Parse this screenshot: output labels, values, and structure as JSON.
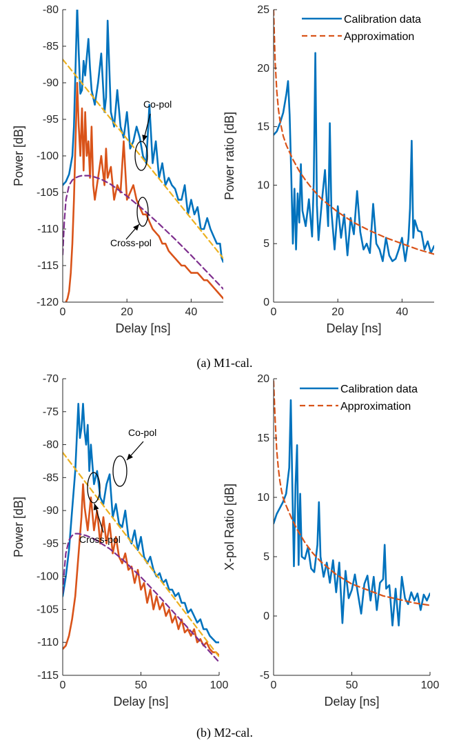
{
  "colors": {
    "blue": "#0072BD",
    "orange": "#D95319",
    "yellow": "#EDB120",
    "purple": "#7E2F8E",
    "axis": "#262626"
  },
  "captions": [
    "(a) M1-cal.",
    "(b) M2-cal."
  ],
  "chart_data": [
    {
      "id": "m1-power",
      "type": "line",
      "xlabel": "Delay [ns]",
      "ylabel": "Power [dB]",
      "xlim": [
        0,
        50
      ],
      "ylim": [
        -120,
        -80
      ],
      "xticks": [
        0,
        20,
        40
      ],
      "yticks": [
        -120,
        -115,
        -110,
        -105,
        -100,
        -95,
        -90,
        -85,
        -80
      ],
      "grid": false,
      "annotations": [
        "Co-pol",
        "Cross-pol"
      ],
      "series": [
        {
          "style": "co-pol",
          "color": "#0072BD",
          "dash": "",
          "width": 2.6,
          "x": [
            0,
            1,
            2,
            3,
            3.5,
            4,
            4.5,
            5,
            5.5,
            6,
            6.5,
            7,
            7.5,
            8,
            8.5,
            9,
            10,
            11,
            12,
            12.5,
            13,
            13.5,
            14,
            15,
            16,
            17,
            18,
            19,
            20,
            21,
            22,
            23,
            24,
            25,
            26,
            27,
            28,
            29,
            30,
            31,
            32,
            33,
            34,
            35,
            36,
            37,
            38,
            39,
            40,
            41,
            42,
            43,
            44,
            45,
            46,
            47,
            48,
            49,
            49.5,
            50
          ],
          "y": [
            -104,
            -103.5,
            -102.5,
            -100,
            -96,
            -88,
            -79.5,
            -86,
            -91.5,
            -91,
            -87,
            -89,
            -86.5,
            -84,
            -88,
            -91,
            -93,
            -90,
            -86,
            -90,
            -94,
            -92,
            -81.5,
            -94,
            -96,
            -91,
            -96,
            -97.5,
            -94,
            -99,
            -98,
            -96,
            -97.5,
            -100,
            -101,
            -93,
            -101,
            -98,
            -103,
            -101,
            -104,
            -103,
            -104,
            -104.5,
            -106,
            -106,
            -104,
            -108,
            -106,
            -108,
            -107,
            -110,
            -110,
            -108.5,
            -110,
            -111,
            -112,
            -112,
            -114,
            -114.5
          ]
        },
        {
          "style": "cross-pol",
          "color": "#D95319",
          "dash": "",
          "width": 2.6,
          "x": [
            1,
            1.5,
            2,
            2.5,
            3,
            3.5,
            4,
            4.5,
            5,
            5.5,
            6,
            6.5,
            7,
            7.5,
            8,
            8.5,
            9,
            9.5,
            10,
            11,
            12,
            13,
            13.5,
            14,
            15,
            16,
            17,
            18,
            19,
            20,
            21,
            22,
            23,
            24,
            25,
            26,
            27,
            28,
            29,
            30,
            31,
            32,
            33,
            34,
            35,
            36,
            37,
            38,
            39,
            40,
            41,
            42,
            43,
            44,
            45,
            46,
            47,
            48,
            49,
            50
          ],
          "y": [
            -120,
            -119.5,
            -118.5,
            -116,
            -112,
            -106,
            -98,
            -90,
            -96,
            -100,
            -93.5,
            -102,
            -94,
            -100,
            -98,
            -103,
            -96,
            -104,
            -106,
            -103,
            -100,
            -104,
            -99,
            -103,
            -101.5,
            -106,
            -104,
            -105,
            -98,
            -106,
            -105,
            -104,
            -106,
            -107,
            -108,
            -108,
            -109,
            -110,
            -110.5,
            -111,
            -112,
            -112,
            -113,
            -113.5,
            -114,
            -114.5,
            -115,
            -115,
            -115.5,
            -116,
            -116,
            -116,
            -116.5,
            -117,
            -117,
            -117.5,
            -118,
            -118.5,
            -119,
            -119.5
          ]
        },
        {
          "style": "co-pol-fit",
          "color": "#EDB120",
          "dash": "8,5",
          "width": 2.2,
          "x": [
            0,
            50
          ],
          "y": [
            -86.8,
            -114
          ]
        },
        {
          "style": "cross-pol-fit",
          "color": "#7E2F8E",
          "dash": "8,5",
          "width": 2.2,
          "x": [
            0,
            0.5,
            1,
            2,
            3,
            4,
            5,
            6,
            8,
            10,
            12,
            15,
            20,
            25,
            30,
            35,
            40,
            45,
            50
          ],
          "y": [
            -113.5,
            -109,
            -106,
            -104,
            -103.3,
            -103,
            -102.8,
            -102.7,
            -102.7,
            -102.9,
            -103.2,
            -103.9,
            -105.5,
            -107.3,
            -109.3,
            -111.4,
            -113.6,
            -115.9,
            -118.2
          ]
        }
      ]
    },
    {
      "id": "m1-ratio",
      "type": "line",
      "xlabel": "Delay [ns]",
      "ylabel": "Power ratio [dB]",
      "xlim": [
        0,
        50
      ],
      "ylim": [
        0,
        25
      ],
      "xticks": [
        0,
        20,
        40
      ],
      "yticks": [
        0,
        5,
        10,
        15,
        20,
        25
      ],
      "grid": false,
      "legend": {
        "position": "top-right"
      },
      "series": [
        {
          "name": "Calibration data",
          "color": "#0072BD",
          "dash": "",
          "width": 2.6,
          "x": [
            0,
            1,
            2,
            3,
            4,
            4.5,
            5,
            5.5,
            6,
            6.5,
            7,
            7.5,
            8,
            8.5,
            9,
            10,
            11,
            12,
            12.5,
            13,
            13.5,
            14,
            15,
            16,
            17,
            17.5,
            18,
            19,
            20,
            21,
            22,
            23,
            24,
            25,
            26,
            27,
            28,
            29,
            30,
            31,
            32,
            33,
            34,
            35,
            36,
            37,
            38,
            39,
            40,
            41,
            42,
            42.5,
            43,
            43.5,
            44,
            45,
            46,
            47,
            48,
            49,
            50
          ],
          "y": [
            14.3,
            14.6,
            15.3,
            16.2,
            17.8,
            18.9,
            16,
            11,
            5,
            9.7,
            4.5,
            9.3,
            6.8,
            11.8,
            7.8,
            6.5,
            8.8,
            5.6,
            10.3,
            21.3,
            8.3,
            5.3,
            8.5,
            11.3,
            6.5,
            15.3,
            7.8,
            4.5,
            8.2,
            5.5,
            7.5,
            4,
            7.2,
            5.8,
            9.5,
            6,
            4.5,
            5,
            4.2,
            8.4,
            5,
            4.5,
            3.5,
            5.5,
            4,
            3.5,
            3.7,
            4.5,
            5.5,
            3.5,
            5.4,
            8,
            13.8,
            5.5,
            7,
            6.1,
            6,
            4.5,
            5.2,
            4.2,
            4.8
          ]
        },
        {
          "name": "Approximation",
          "color": "#D95319",
          "dash": "8,5",
          "width": 2.2,
          "x": [
            0,
            0.5,
            1,
            1.5,
            2,
            3,
            4,
            5,
            6,
            8,
            10,
            12,
            15,
            20,
            25,
            30,
            35,
            40,
            45,
            50
          ],
          "y": [
            25,
            20.5,
            18,
            16.5,
            15.5,
            14.2,
            13.4,
            12.8,
            12.2,
            11.2,
            10.4,
            9.7,
            8.8,
            7.7,
            6.8,
            6.1,
            5.5,
            5,
            4.5,
            4.1
          ]
        }
      ]
    },
    {
      "id": "m2-power",
      "type": "line",
      "xlabel": "Delay [ns]",
      "ylabel": "Power [dB]",
      "xlim": [
        0,
        100
      ],
      "ylim": [
        -115,
        -70
      ],
      "xticks": [
        0,
        50,
        100
      ],
      "yticks": [
        -115,
        -110,
        -105,
        -100,
        -95,
        -90,
        -85,
        -80,
        -75,
        -70
      ],
      "grid": false,
      "annotations": [
        "Co-pol",
        "Cross-pol"
      ],
      "series": [
        {
          "style": "co-pol",
          "color": "#0072BD",
          "dash": "",
          "width": 2.6,
          "x": [
            0,
            2,
            4,
            6,
            8,
            10,
            11,
            12,
            13,
            14,
            15,
            16,
            17,
            18,
            19,
            20,
            22,
            24,
            26,
            28,
            30,
            32,
            34,
            36,
            38,
            40,
            42,
            44,
            46,
            48,
            50,
            52,
            54,
            56,
            58,
            60,
            62,
            64,
            66,
            68,
            70,
            72,
            74,
            76,
            78,
            80,
            82,
            84,
            86,
            88,
            90,
            92,
            94,
            96,
            98,
            100
          ],
          "y": [
            -103,
            -100,
            -96,
            -90,
            -84,
            -73.8,
            -79,
            -77.5,
            -73.8,
            -78,
            -80,
            -77,
            -84,
            -80,
            -83,
            -86,
            -84,
            -88,
            -89,
            -86,
            -84.5,
            -91,
            -89,
            -92,
            -92.5,
            -90,
            -94,
            -95,
            -93,
            -96,
            -94,
            -97,
            -98,
            -97,
            -99,
            -100,
            -99.5,
            -101,
            -100.5,
            -102,
            -102,
            -103,
            -102.5,
            -104,
            -104,
            -105.5,
            -105,
            -106,
            -107,
            -106.5,
            -108,
            -108,
            -109,
            -109.5,
            -110,
            -110
          ]
        },
        {
          "style": "cross-pol",
          "color": "#D95319",
          "dash": "",
          "width": 2.6,
          "x": [
            0,
            2,
            4,
            6,
            8,
            10,
            12,
            13,
            14,
            16,
            18,
            20,
            22,
            24,
            26,
            28,
            30,
            32,
            34,
            36,
            38,
            40,
            42,
            44,
            46,
            48,
            50,
            52,
            54,
            56,
            58,
            60,
            62,
            64,
            66,
            68,
            70,
            72,
            74,
            76,
            78,
            80,
            82,
            84,
            86,
            88,
            90,
            92,
            94,
            96,
            98,
            100
          ],
          "y": [
            -111,
            -110.5,
            -109,
            -106.5,
            -103,
            -97,
            -91,
            -86,
            -89.5,
            -93,
            -88,
            -93,
            -90,
            -95,
            -91,
            -95,
            -92,
            -96.5,
            -94,
            -97,
            -98,
            -96.5,
            -99,
            -98.5,
            -101,
            -99,
            -102,
            -101,
            -104,
            -102,
            -105,
            -103,
            -105,
            -104,
            -106,
            -105,
            -107,
            -106,
            -108,
            -106.5,
            -108.5,
            -108,
            -109,
            -108,
            -110,
            -109.5,
            -110.5,
            -110,
            -111,
            -111.5,
            -111.5,
            -112
          ]
        },
        {
          "style": "co-pol-fit",
          "color": "#EDB120",
          "dash": "8,5",
          "width": 2.2,
          "x": [
            0,
            100
          ],
          "y": [
            -81.2,
            -112.2
          ]
        },
        {
          "style": "cross-pol-fit",
          "color": "#7E2F8E",
          "dash": "8,5",
          "width": 2.2,
          "x": [
            0,
            1,
            2,
            4,
            6,
            8,
            10,
            15,
            20,
            30,
            40,
            50,
            60,
            70,
            80,
            90,
            100
          ],
          "y": [
            -102.5,
            -99,
            -96.5,
            -94.5,
            -93.8,
            -93.5,
            -93.5,
            -93.8,
            -94.3,
            -95.8,
            -97.8,
            -100.1,
            -102.6,
            -105.2,
            -107.8,
            -110.4,
            -113
          ]
        }
      ]
    },
    {
      "id": "m2-ratio",
      "type": "line",
      "xlabel": "Delay [ns]",
      "ylabel": "X-pol Ratio [dB]",
      "xlim": [
        0,
        100
      ],
      "ylim": [
        -5,
        20
      ],
      "xticks": [
        0,
        50,
        100
      ],
      "yticks": [
        -5,
        0,
        5,
        10,
        15,
        20
      ],
      "grid": false,
      "legend": {
        "position": "top-right"
      },
      "series": [
        {
          "name": "Calibration data",
          "color": "#0072BD",
          "dash": "",
          "width": 2.6,
          "x": [
            0,
            2,
            4,
            6,
            8,
            10,
            11,
            12,
            13,
            14,
            15,
            16,
            17,
            18,
            20,
            22,
            24,
            26,
            28,
            29,
            30,
            32,
            34,
            36,
            38,
            40,
            42,
            44,
            45,
            46,
            48,
            50,
            52,
            54,
            56,
            58,
            60,
            62,
            64,
            66,
            68,
            70,
            71,
            72,
            74,
            76,
            78,
            80,
            82,
            84,
            86,
            88,
            90,
            92,
            94,
            96,
            98,
            100
          ],
          "y": [
            7.8,
            8.6,
            9.1,
            9.6,
            10.3,
            12.5,
            18.2,
            11,
            4.2,
            11,
            14.4,
            4.3,
            10.3,
            5,
            4.8,
            5.8,
            4,
            3.7,
            6,
            9.6,
            5,
            3.3,
            4.5,
            2.8,
            4.7,
            2,
            4.5,
            -0.6,
            1.7,
            3.8,
            1.5,
            2.2,
            3.5,
            1.8,
            0.2,
            2.7,
            3.4,
            1.3,
            3.3,
            0.5,
            2.8,
            3.1,
            6,
            2.3,
            2.6,
            -0.8,
            2.3,
            -0.8,
            3.3,
            1.5,
            1,
            2,
            1.3,
            1.9,
            0.5,
            1.8,
            1.3,
            1.9
          ]
        },
        {
          "name": "Approximation",
          "color": "#D95319",
          "dash": "8,5",
          "width": 2.2,
          "x": [
            0,
            1,
            2,
            3,
            4,
            5,
            6,
            8,
            10,
            12,
            15,
            20,
            25,
            30,
            40,
            50,
            60,
            70,
            80,
            90,
            100
          ],
          "y": [
            19.8,
            16.5,
            14,
            12.5,
            11.4,
            10.6,
            10,
            9.3,
            8.7,
            8.1,
            7.3,
            6.2,
            5.3,
            4.6,
            3.5,
            2.7,
            2.2,
            1.7,
            1.4,
            1.1,
            0.9
          ]
        }
      ]
    }
  ]
}
